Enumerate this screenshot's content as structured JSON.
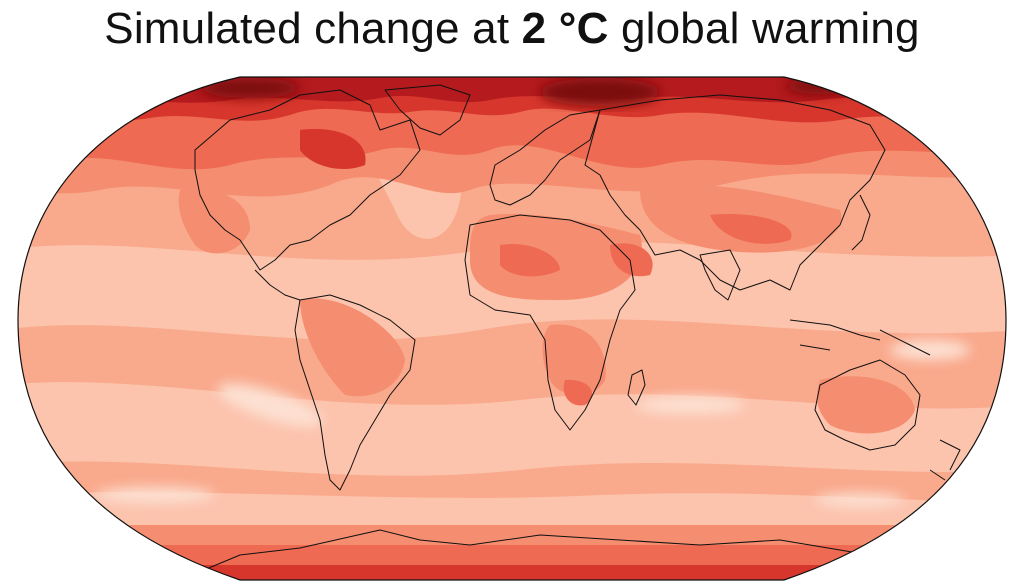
{
  "title": {
    "prefix": "Simulated change at ",
    "emphasis": "2 °C",
    "suffix": " global warming"
  },
  "map": {
    "projection": "robinson-like",
    "colors": {
      "lightest": "#fde0d2",
      "light": "#fcc3ad",
      "base": "#f9a98c",
      "mid": "#f58d70",
      "warm": "#ee6a52",
      "hot": "#d7362c",
      "hotter": "#b41a1e",
      "extreme": "#7a0c10",
      "coastline": "#111111"
    }
  }
}
